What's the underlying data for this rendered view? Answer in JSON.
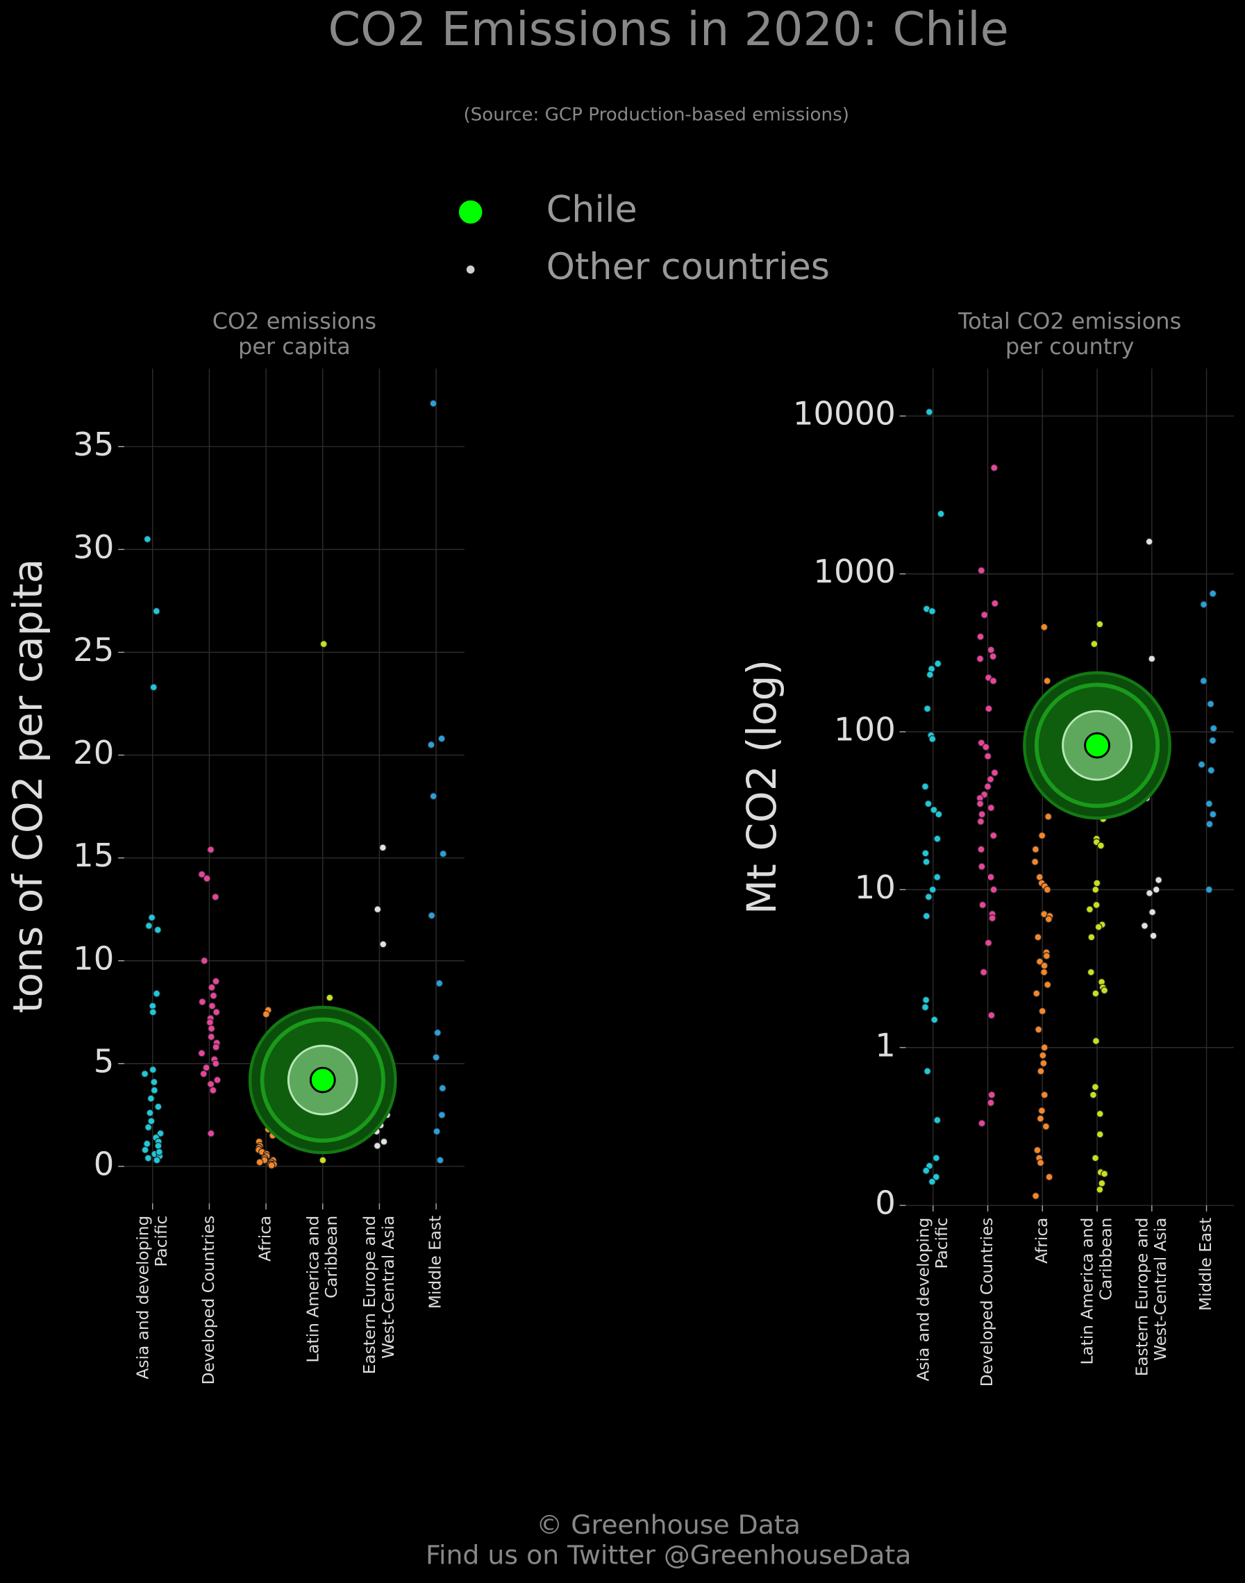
{
  "title": "CO2 Emissions in 2020: Chile",
  "subtitle": "(Source: GCP Production-based emissions)",
  "legend": [
    {
      "label": "Chile",
      "color": "#00ff00"
    },
    {
      "label": "Other countries",
      "color": "#d0d0d0"
    }
  ],
  "footer": [
    "© Greenhouse Data",
    "Find us on Twitter @GreenhouseData"
  ],
  "chart_data": [
    {
      "type": "strip",
      "title": "CO2 emissions\nper capita",
      "y_label": "tons of CO2 per capita",
      "yscale": "linear",
      "grid": true,
      "categories": [
        "Asia and developing\nPacific",
        "Developed Countries",
        "Africa",
        "Latin America and\nCaribbean",
        "Eastern Europe and\nWest-Central Asia",
        "Middle East"
      ],
      "colors": [
        "#1ec8d8",
        "#e8449a",
        "#f5862a",
        "#c8e01e",
        "#e0e0e0",
        "#2a9fd8"
      ],
      "values": [
        [
          30.5,
          27.0,
          23.3,
          12.1,
          11.7,
          11.5,
          8.4,
          7.8,
          7.5,
          4.7,
          4.5,
          4.1,
          3.7,
          3.3,
          2.9,
          2.6,
          2.2,
          1.9,
          1.6,
          1.4,
          1.2,
          1.0,
          0.8,
          0.6,
          0.5,
          0.4,
          0.3,
          1.1,
          0.7
        ],
        [
          15.4,
          14.2,
          14.0,
          13.1,
          10.0,
          9.0,
          8.7,
          8.3,
          8.0,
          7.8,
          7.5,
          7.2,
          7.0,
          6.7,
          6.3,
          6.0,
          5.8,
          5.5,
          5.2,
          5.0,
          4.8,
          4.5,
          4.2,
          4.0,
          3.7,
          1.6
        ],
        [
          7.6,
          7.4,
          5.0,
          3.6,
          3.1,
          2.4,
          2.0,
          1.8,
          1.5,
          1.2,
          1.0,
          0.9,
          0.8,
          0.7,
          0.6,
          0.5,
          0.4,
          0.3,
          0.3,
          0.2,
          0.2,
          0.1,
          0.1,
          0.1,
          0.05
        ],
        [
          25.4,
          8.2,
          7.0,
          6.4,
          6.2,
          5.3,
          4.7,
          4.4,
          4.1,
          3.8,
          3.4,
          2.9,
          2.6,
          2.4,
          2.2,
          2.0,
          1.7,
          1.5,
          1.3,
          1.0,
          0.8,
          0.3
        ],
        [
          15.5,
          12.5,
          10.8,
          6.1,
          3.7,
          3.4,
          2.5,
          2.0,
          1.7,
          1.2,
          1.0
        ],
        [
          37.1,
          20.8,
          20.5,
          18.0,
          15.2,
          12.2,
          8.9,
          6.5,
          5.3,
          3.8,
          2.5,
          1.7,
          0.3
        ]
      ],
      "highlight": {
        "name": "Chile",
        "category": 3,
        "value": 4.2,
        "color": "#00ff00"
      },
      "ylim": [
        -1.8,
        38.8
      ],
      "yticks": [
        0,
        5,
        10,
        15,
        20,
        25,
        30,
        35
      ]
    },
    {
      "type": "strip",
      "title": "Total CO2 emissions\nper country",
      "y_label": "Mt CO2 (log)",
      "yscale": "symlog",
      "grid": true,
      "categories": [
        "Asia and developing\nPacific",
        "Developed Countries",
        "Africa",
        "Latin America and\nCaribbean",
        "Eastern Europe and\nWest-Central Asia",
        "Middle East"
      ],
      "colors": [
        "#1ec8d8",
        "#e8449a",
        "#f5862a",
        "#c8e01e",
        "#e0e0e0",
        "#2a9fd8"
      ],
      "values": [
        [
          10600,
          2400,
          600,
          580,
          270,
          250,
          230,
          140,
          95,
          90,
          45,
          35,
          32,
          30,
          21,
          17,
          15,
          12,
          10,
          9,
          6.8,
          2.0,
          1.8,
          1.5,
          0.85,
          0.54,
          0.3,
          0.25,
          0.22,
          0.18,
          0.15
        ],
        [
          4700,
          1050,
          650,
          550,
          400,
          330,
          300,
          290,
          220,
          210,
          140,
          85,
          80,
          70,
          55,
          50,
          45,
          40,
          38,
          35,
          33,
          30,
          27,
          22,
          18,
          14,
          12,
          10,
          8,
          7,
          6.6,
          4.6,
          3.0,
          1.6,
          0.7,
          0.65,
          0.52
        ],
        [
          460,
          210,
          150,
          125,
          65,
          52,
          29,
          22,
          18,
          15,
          12,
          11,
          10.5,
          10,
          7,
          6.8,
          6.5,
          5,
          4,
          3.8,
          3.5,
          3.3,
          3.0,
          2.5,
          2.2,
          1.7,
          1.3,
          1.0,
          0.95,
          0.9,
          0.85,
          0.7,
          0.6,
          0.55,
          0.5,
          0.35,
          0.3,
          0.27,
          0.18,
          0.06
        ],
        [
          480,
          360,
          160,
          45,
          35,
          28,
          21,
          20,
          19,
          11,
          10,
          8,
          7.5,
          6,
          5.8,
          5,
          3,
          2.6,
          2.4,
          2.3,
          2.2,
          1.1,
          0.75,
          0.7,
          0.58,
          0.45,
          0.3,
          0.21,
          0.2,
          0.14,
          0.1
        ],
        [
          1600,
          290,
          115,
          75,
          58,
          38,
          11.5,
          10,
          9.5,
          7.2,
          5.9,
          5.1
        ],
        [
          750,
          640,
          210,
          150,
          105,
          88,
          62,
          57,
          35,
          30,
          26,
          10
        ]
      ],
      "highlight": {
        "name": "Chile",
        "category": 3,
        "value": 82,
        "color": "#00ff00"
      },
      "ylim": [
        0,
        20000
      ],
      "yticks": [
        0,
        1,
        10,
        100,
        1000,
        10000
      ]
    }
  ]
}
